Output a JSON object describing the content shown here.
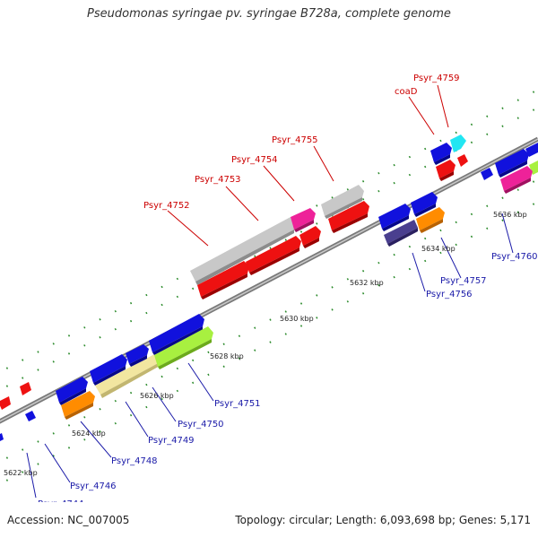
{
  "title": "Pseudomonas syringae pv. syringae B728a, complete genome",
  "footer": {
    "accession": "Accession: NC_007005",
    "summary": "Topology: circular; Length: 6,093,698 bp; Genes: 5,171"
  },
  "colors": {
    "red": "#ee1111",
    "blue": "#1111dd",
    "gray": "#c8c8c8",
    "magenta": "#ee2299",
    "cyan": "#22e6f2",
    "orange": "#ff8c00",
    "navy": "#4a3f8f",
    "lime": "#a8f040",
    "khaki": "#f2e6a0",
    "label_red": "#cc0000",
    "label_blue": "#1a1aa8",
    "tick_green": "#2a8a2a",
    "backbone": "#909090"
  },
  "kbp_labels": [
    {
      "text": "5622 kbp",
      "t": 30
    },
    {
      "text": "5624 kbp",
      "t": 110
    },
    {
      "text": "5626 kbp",
      "t": 190
    },
    {
      "text": "5628 kbp",
      "t": 270
    },
    {
      "text": "5630 kbp",
      "t": 350
    },
    {
      "text": "5632 kbp",
      "t": 430
    },
    {
      "text": "5634 kbp",
      "t": 510
    },
    {
      "text": "5636 kbp",
      "t": 590
    }
  ],
  "genes_top": [
    {
      "label": "",
      "t0": 18,
      "t1": 28,
      "off": -9,
      "row": 1,
      "color": "red",
      "dir": 1
    },
    {
      "label": "",
      "t0": 30,
      "t1": 40,
      "off": -9,
      "row": 2,
      "color": "blue",
      "dir": 1
    },
    {
      "label": "",
      "t0": 70,
      "t1": 100,
      "off": -9,
      "row": 1,
      "color": "blue",
      "dir": 1
    },
    {
      "label": "",
      "t0": 110,
      "t1": 148,
      "off": -9,
      "row": 1,
      "color": "blue",
      "dir": 1
    },
    {
      "label": "",
      "t0": 150,
      "t1": 165,
      "off": -9,
      "row": 1,
      "color": "blue",
      "dir": 1
    },
    {
      "label": "",
      "t0": 168,
      "t1": 225,
      "off": -9,
      "row": 1,
      "color": "blue",
      "dir": 1
    },
    {
      "label": "",
      "t0": 112,
      "t1": 178,
      "off": -9,
      "row": 0,
      "color": "khaki",
      "dir": 1
    },
    {
      "label": "",
      "t0": 178,
      "t1": 238,
      "off": -9,
      "row": 0,
      "color": "lime",
      "dir": 1
    },
    {
      "label": "",
      "t0": 72,
      "t1": 105,
      "off": -9,
      "row": -1,
      "color": "orange",
      "dir": 1
    },
    {
      "label": "",
      "t0": 225,
      "t1": 278,
      "off": -9,
      "row": -1,
      "color": "red",
      "dir": 1
    },
    {
      "label": "",
      "t0": 278,
      "t1": 340,
      "off": -9,
      "row": -1,
      "color": "red",
      "dir": 1
    },
    {
      "label": "",
      "t0": 342,
      "t1": 362,
      "off": -9,
      "row": -1,
      "color": "red",
      "dir": 1
    },
    {
      "label": "",
      "t0": 225,
      "t1": 330,
      "off": -9,
      "row": 0,
      "color": "gray",
      "dir": 1
    },
    {
      "label": "",
      "t0": 330,
      "t1": 352,
      "off": -9,
      "row": 0,
      "color": "magenta",
      "dir": 1
    },
    {
      "label": "",
      "t0": 370,
      "t1": 412,
      "off": -9,
      "row": 0,
      "color": "gray",
      "dir": 1
    },
    {
      "label": "",
      "t0": 375,
      "t1": 415,
      "off": -9,
      "row": -1,
      "color": "red",
      "dir": 1
    }
  ]
}
